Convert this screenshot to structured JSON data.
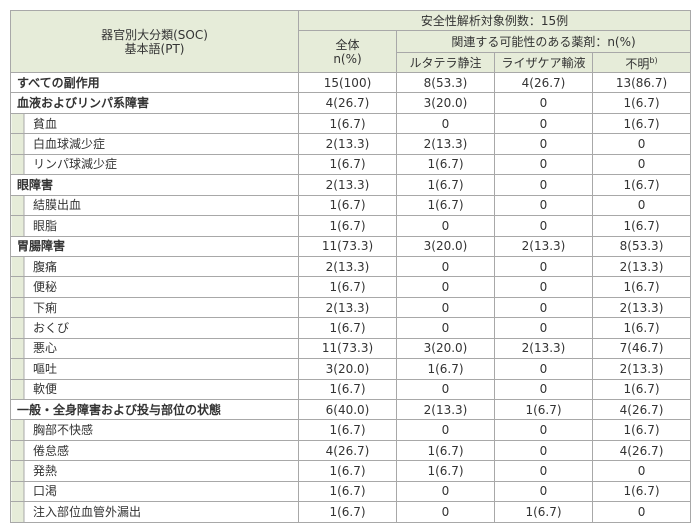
{
  "header": {
    "soc": "器官別大分類(SOC)",
    "pt": "基本語(PT)",
    "population": "安全性解析対象例数：15例",
    "total": "全体",
    "total_unit": "n(%)",
    "related": "関連する可能性のある薬剤：n(%)",
    "drugs": [
      "ルタテラ静注",
      "ライザケア輸液",
      "不明"
    ],
    "footnote_mark": "b)"
  },
  "all_row": [
    "すべての副作用",
    "15(100)",
    "8(53.3)",
    "4(26.7)",
    "13(86.7)"
  ],
  "groups": [
    {
      "soc": [
        "血液およびリンパ系障害",
        "4(26.7)",
        "3(20.0)",
        "0",
        "1(6.7)"
      ],
      "terms": [
        [
          "貧血",
          "1(6.7)",
          "0",
          "0",
          "1(6.7)"
        ],
        [
          "白血球減少症",
          "2(13.3)",
          "2(13.3)",
          "0",
          "0"
        ],
        [
          "リンパ球減少症",
          "1(6.7)",
          "1(6.7)",
          "0",
          "0"
        ]
      ]
    },
    {
      "soc": [
        "眼障害",
        "2(13.3)",
        "1(6.7)",
        "0",
        "1(6.7)"
      ],
      "terms": [
        [
          "結膜出血",
          "1(6.7)",
          "1(6.7)",
          "0",
          "0"
        ],
        [
          "眼脂",
          "1(6.7)",
          "0",
          "0",
          "1(6.7)"
        ]
      ]
    },
    {
      "soc": [
        "胃腸障害",
        "11(73.3)",
        "3(20.0)",
        "2(13.3)",
        "8(53.3)"
      ],
      "terms": [
        [
          "腹痛",
          "2(13.3)",
          "0",
          "0",
          "2(13.3)"
        ],
        [
          "便秘",
          "1(6.7)",
          "0",
          "0",
          "1(6.7)"
        ],
        [
          "下痢",
          "2(13.3)",
          "0",
          "0",
          "2(13.3)"
        ],
        [
          "おくび",
          "1(6.7)",
          "0",
          "0",
          "1(6.7)"
        ],
        [
          "悪心",
          "11(73.3)",
          "3(20.0)",
          "2(13.3)",
          "7(46.7)"
        ],
        [
          "嘔吐",
          "3(20.0)",
          "1(6.7)",
          "0",
          "2(13.3)"
        ],
        [
          "軟便",
          "1(6.7)",
          "0",
          "0",
          "1(6.7)"
        ]
      ]
    },
    {
      "soc": [
        "一般・全身障害および投与部位の状態",
        "6(40.0)",
        "2(13.3)",
        "1(6.7)",
        "4(26.7)"
      ],
      "terms": [
        [
          "胸部不快感",
          "1(6.7)",
          "0",
          "0",
          "1(6.7)"
        ],
        [
          "倦怠感",
          "4(26.7)",
          "1(6.7)",
          "0",
          "4(26.7)"
        ],
        [
          "発熱",
          "1(6.7)",
          "1(6.7)",
          "0",
          "0"
        ],
        [
          "口渇",
          "1(6.7)",
          "0",
          "0",
          "1(6.7)"
        ],
        [
          "注入部位血管外漏出",
          "1(6.7)",
          "0",
          "1(6.7)",
          "0"
        ]
      ]
    }
  ]
}
